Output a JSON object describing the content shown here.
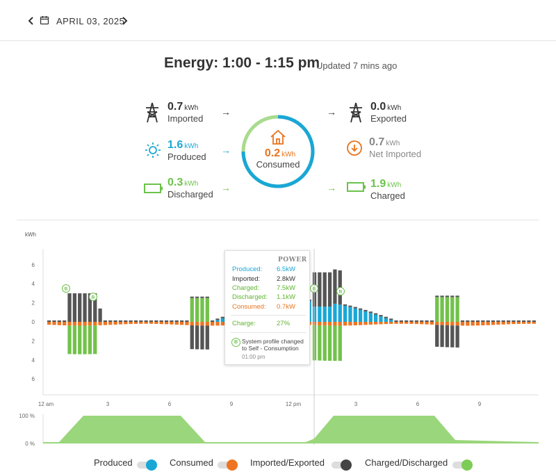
{
  "header": {
    "date": "APRIL 03, 2025"
  },
  "summary": {
    "title": "Energy: 1:00 - 1:15 pm",
    "updated": "Updated 7 mins ago"
  },
  "left": [
    {
      "value": "0.7",
      "unit": "kWh",
      "label": "Imported",
      "color": "#333333",
      "icon": "transmission-tower-icon"
    },
    {
      "value": "1.6",
      "unit": "kWh",
      "label": "Produced",
      "color": "#1aa7d6",
      "icon": "sun-icon"
    },
    {
      "value": "0.3",
      "unit": "kWh",
      "label": "Discharged",
      "color": "#6cc24a",
      "icon": "battery-icon"
    }
  ],
  "center": {
    "value": "0.2",
    "unit": "kWh",
    "label": "Consumed",
    "color": "#e8731c",
    "icon": "home-icon"
  },
  "right": [
    {
      "value": "0.0",
      "unit": "kWh",
      "label": "Exported",
      "color": "#333333",
      "icon": "transmission-tower-icon"
    },
    {
      "value": "0.7",
      "unit": "kWh",
      "label": "Net Imported",
      "color": "#888888",
      "icon": "down-arrow-circle-icon"
    },
    {
      "value": "1.9",
      "unit": "kWh",
      "label": "Charged",
      "color": "#6cc24a",
      "icon": "battery-icon"
    }
  ],
  "chart_data": {
    "type": "bar",
    "ylabel": "kWh",
    "y_ticks": [
      "6",
      "4",
      "2",
      "0",
      "2",
      "4",
      "6"
    ],
    "x_ticks": [
      "12 am",
      "3",
      "6",
      "9",
      "12 pm",
      "3",
      "6",
      "9"
    ],
    "soc_ticks": [
      "100 %",
      "0 %"
    ],
    "colors": {
      "produced": "#1aa7d6",
      "consumed": "#ee7421",
      "imported": "#555555",
      "charged": "#72c24a",
      "soc_fill": "#9ad67b"
    },
    "series_note": "intervals 15 min; positive = produced/imported/discharged, negative = consumed/charged"
  },
  "tooltip": {
    "header": "POWER",
    "rows": [
      {
        "label": "Produced:",
        "value": "6.5kW",
        "color": "#1aa7d6"
      },
      {
        "label": "Imported:",
        "value": "2.8kW",
        "color": "#333333"
      },
      {
        "label": "Charged:",
        "value": "7.5kW",
        "color": "#5fb530"
      },
      {
        "label": "Discharged:",
        "value": "1.1kW",
        "color": "#5fb530"
      },
      {
        "label": "Consumed:",
        "value": "0.7kW",
        "color": "#e8731c"
      }
    ],
    "charge_label": "Charge:",
    "charge_value": "27%",
    "event_badge": "B",
    "event_text": "System profile changed to Self - Consumption",
    "event_time": "01:00 pm"
  },
  "legend": [
    {
      "label": "Produced",
      "color": "#1aa7d6"
    },
    {
      "label": "Consumed",
      "color": "#ee7421"
    },
    {
      "label": "Imported/Exported",
      "color": "#444444"
    },
    {
      "label": "Charged/Discharged",
      "color": "#7ccc55"
    }
  ]
}
